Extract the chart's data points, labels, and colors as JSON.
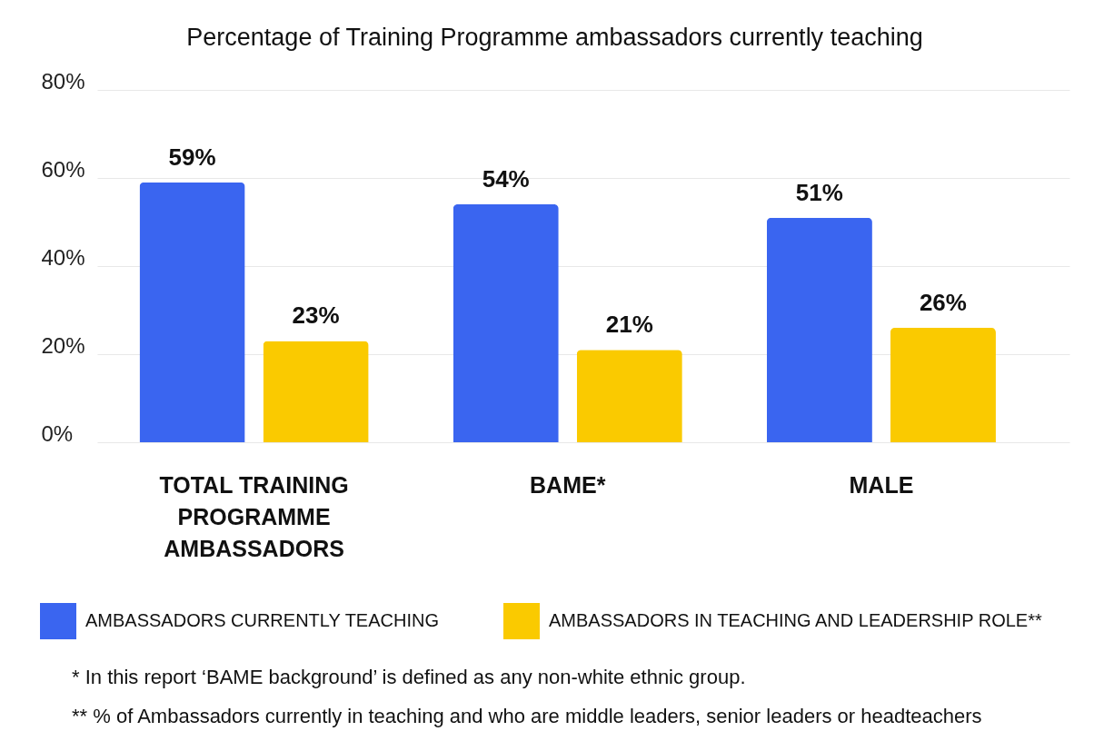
{
  "chart_data": {
    "type": "bar",
    "title": "Percentage of Training Programme ambassadors currently teaching",
    "categories": [
      "TOTAL TRAINING PROGRAMME AMBASSADORS",
      "BAME*",
      "MALE"
    ],
    "series": [
      {
        "name": "AMBASSADORS CURRENTLY TEACHING",
        "color": "#3a65f0",
        "values": [
          59,
          54,
          51
        ],
        "value_labels": [
          "59%",
          "54%",
          "51%"
        ]
      },
      {
        "name": "AMBASSADORS IN TEACHING AND LEADERSHIP ROLE**",
        "color": "#faca00",
        "values": [
          23,
          21,
          26
        ],
        "value_labels": [
          "23%",
          "21%",
          "26%"
        ]
      }
    ],
    "ylim": [
      0,
      80
    ],
    "yticks": [
      {
        "value": 0,
        "label": "0%"
      },
      {
        "value": 20,
        "label": "20%"
      },
      {
        "value": 40,
        "label": "40%"
      },
      {
        "value": 60,
        "label": "60%"
      },
      {
        "value": 80,
        "label": "80%"
      }
    ],
    "grid": "y",
    "legend": "bottom",
    "annotations": [
      "* In this report ‘BAME background’ is defined as any non-white ethnic group.",
      "** % of Ambassadors currently in teaching and who are middle leaders, senior leaders or headteachers"
    ]
  }
}
